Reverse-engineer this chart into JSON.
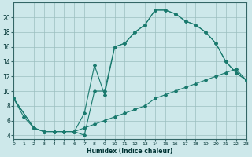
{
  "xlabel": "Humidex (Indice chaleur)",
  "bg_color": "#cde8ea",
  "line_color": "#1a7a6e",
  "grid_color": "#9bbfbf",
  "lines": [
    {
      "x": [
        0,
        1,
        2,
        3,
        4,
        5,
        6,
        7,
        8,
        9,
        10,
        11,
        12,
        13,
        14,
        15,
        16,
        17,
        18,
        19,
        20,
        21,
        22,
        23
      ],
      "y": [
        9,
        6.5,
        5,
        4.5,
        4.5,
        4.5,
        4.5,
        4,
        10,
        10,
        16,
        16.5,
        18,
        19,
        21,
        21,
        20.5,
        19.5,
        19,
        18,
        16.5,
        14,
        12.5,
        11.5
      ]
    },
    {
      "x": [
        0,
        2,
        3,
        4,
        5,
        6,
        7,
        8,
        9,
        10,
        11,
        12,
        13,
        14,
        15,
        16,
        17,
        18,
        19,
        20,
        21,
        22,
        23
      ],
      "y": [
        9,
        5,
        4.5,
        4.5,
        4.5,
        4.5,
        7,
        13.5,
        9.5,
        16,
        16.5,
        18,
        19,
        21,
        21,
        20.5,
        19.5,
        19,
        18,
        16.5,
        14,
        12.5,
        11.5
      ]
    },
    {
      "x": [
        0,
        2,
        3,
        4,
        5,
        6,
        7,
        8,
        9,
        10,
        11,
        12,
        13,
        14,
        15,
        16,
        17,
        18,
        19,
        20,
        21,
        22,
        23
      ],
      "y": [
        9,
        5,
        4.5,
        4.5,
        4.5,
        4.5,
        5,
        5.5,
        6,
        6.5,
        7,
        7.5,
        8,
        9,
        9.5,
        10,
        10.5,
        11,
        11.5,
        12,
        12.5,
        13,
        11.5
      ]
    }
  ],
  "xlim": [
    0,
    23
  ],
  "ylim": [
    3.5,
    22
  ],
  "yticks": [
    4,
    6,
    8,
    10,
    12,
    14,
    16,
    18,
    20
  ],
  "xticks": [
    0,
    1,
    2,
    3,
    4,
    5,
    6,
    7,
    8,
    9,
    10,
    11,
    12,
    13,
    14,
    15,
    16,
    17,
    18,
    19,
    20,
    21,
    22,
    23
  ]
}
